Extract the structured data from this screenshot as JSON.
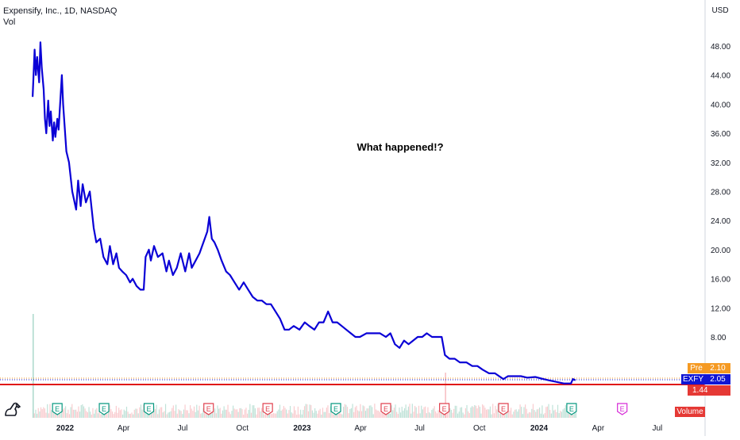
{
  "header": {
    "title": "Expensify, Inc., 1D, NASDAQ",
    "volume_label": "Vol",
    "currency": "USD"
  },
  "annotation": {
    "text": "What happened!?"
  },
  "price_tags": {
    "pre_label": "Pre",
    "pre_value": "2.10",
    "symbol_label": "EXFY",
    "symbol_value": "2.05",
    "support_value": "1.44",
    "volume_label": "Volume"
  },
  "colors": {
    "price_line": "#0a00d6",
    "support_line": "#e01818",
    "pre_tag": "#f59a23",
    "symbol_tag": "#1015d4",
    "support_tag": "#e53935",
    "earnings_green": "#089981",
    "earnings_red": "#e0424f",
    "earnings_purple": "#d62bd6"
  },
  "chart_data": {
    "type": "line",
    "title": "Expensify, Inc., 1D, NASDAQ",
    "ylim": [
      0,
      52
    ],
    "y_ticks": [
      "48.00",
      "44.00",
      "40.00",
      "36.00",
      "32.00",
      "28.00",
      "24.00",
      "20.00",
      "16.00",
      "12.00",
      "8.00"
    ],
    "x_ticks": [
      "2022",
      "Apr",
      "Jul",
      "Oct",
      "2023",
      "Apr",
      "Jul",
      "Oct",
      "2024",
      "Apr",
      "Jul"
    ],
    "x_tick_dates": [
      "2022-01-01",
      "2022-04-01",
      "2022-07-01",
      "2022-10-01",
      "2023-01-01",
      "2023-04-01",
      "2023-07-01",
      "2023-10-01",
      "2024-01-01",
      "2024-04-01",
      "2024-07-01"
    ],
    "x_range": [
      "2021-11-15",
      "2024-08-20"
    ],
    "support_level": 1.44,
    "series": [
      {
        "name": "EXFY",
        "points": [
          [
            "2021-11-12",
            41.0
          ],
          [
            "2021-11-15",
            47.5
          ],
          [
            "2021-11-17",
            44.0
          ],
          [
            "2021-11-19",
            46.5
          ],
          [
            "2021-11-22",
            43.0
          ],
          [
            "2021-11-24",
            48.5
          ],
          [
            "2021-11-26",
            45.0
          ],
          [
            "2021-11-29",
            42.0
          ],
          [
            "2021-12-01",
            38.0
          ],
          [
            "2021-12-03",
            36.0
          ],
          [
            "2021-12-06",
            40.5
          ],
          [
            "2021-12-08",
            37.0
          ],
          [
            "2021-12-10",
            39.0
          ],
          [
            "2021-12-13",
            35.0
          ],
          [
            "2021-12-15",
            37.5
          ],
          [
            "2021-12-17",
            35.5
          ],
          [
            "2021-12-20",
            38.0
          ],
          [
            "2021-12-22",
            36.5
          ],
          [
            "2021-12-27",
            44.0
          ],
          [
            "2021-12-29",
            40.0
          ],
          [
            "2022-01-03",
            33.5
          ],
          [
            "2022-01-07",
            32.0
          ],
          [
            "2022-01-12",
            28.0
          ],
          [
            "2022-01-18",
            25.5
          ],
          [
            "2022-01-21",
            29.5
          ],
          [
            "2022-01-25",
            26.0
          ],
          [
            "2022-01-28",
            29.0
          ],
          [
            "2022-02-02",
            26.5
          ],
          [
            "2022-02-08",
            28.0
          ],
          [
            "2022-02-14",
            23.0
          ],
          [
            "2022-02-18",
            21.0
          ],
          [
            "2022-02-24",
            21.5
          ],
          [
            "2022-03-01",
            19.0
          ],
          [
            "2022-03-07",
            18.0
          ],
          [
            "2022-03-11",
            20.5
          ],
          [
            "2022-03-16",
            18.0
          ],
          [
            "2022-03-21",
            19.5
          ],
          [
            "2022-03-25",
            17.5
          ],
          [
            "2022-03-30",
            17.0
          ],
          [
            "2022-04-05",
            16.5
          ],
          [
            "2022-04-11",
            15.5
          ],
          [
            "2022-04-15",
            16.0
          ],
          [
            "2022-04-21",
            15.0
          ],
          [
            "2022-04-27",
            14.5
          ],
          [
            "2022-05-02",
            14.5
          ],
          [
            "2022-05-05",
            19.0
          ],
          [
            "2022-05-10",
            20.0
          ],
          [
            "2022-05-13",
            18.5
          ],
          [
            "2022-05-18",
            20.5
          ],
          [
            "2022-05-24",
            19.0
          ],
          [
            "2022-05-31",
            19.5
          ],
          [
            "2022-06-06",
            17.0
          ],
          [
            "2022-06-10",
            18.5
          ],
          [
            "2022-06-16",
            16.5
          ],
          [
            "2022-06-22",
            17.5
          ],
          [
            "2022-06-28",
            19.5
          ],
          [
            "2022-07-05",
            17.0
          ],
          [
            "2022-07-11",
            19.5
          ],
          [
            "2022-07-15",
            17.5
          ],
          [
            "2022-07-21",
            18.5
          ],
          [
            "2022-07-27",
            19.5
          ],
          [
            "2022-08-02",
            21.0
          ],
          [
            "2022-08-08",
            22.5
          ],
          [
            "2022-08-11",
            24.5
          ],
          [
            "2022-08-15",
            21.5
          ],
          [
            "2022-08-19",
            21.0
          ],
          [
            "2022-08-24",
            20.0
          ],
          [
            "2022-08-30",
            18.5
          ],
          [
            "2022-09-06",
            17.0
          ],
          [
            "2022-09-12",
            16.5
          ],
          [
            "2022-09-19",
            15.5
          ],
          [
            "2022-09-26",
            14.5
          ],
          [
            "2022-10-03",
            15.5
          ],
          [
            "2022-10-10",
            14.5
          ],
          [
            "2022-10-17",
            13.5
          ],
          [
            "2022-10-24",
            13.0
          ],
          [
            "2022-10-31",
            13.0
          ],
          [
            "2022-11-07",
            12.5
          ],
          [
            "2022-11-14",
            12.5
          ],
          [
            "2022-11-21",
            11.5
          ],
          [
            "2022-11-28",
            10.5
          ],
          [
            "2022-12-05",
            9.0
          ],
          [
            "2022-12-12",
            9.0
          ],
          [
            "2022-12-19",
            9.5
          ],
          [
            "2022-12-28",
            9.0
          ],
          [
            "2023-01-05",
            10.0
          ],
          [
            "2023-01-12",
            9.5
          ],
          [
            "2023-01-20",
            9.0
          ],
          [
            "2023-01-27",
            10.0
          ],
          [
            "2023-02-03",
            10.0
          ],
          [
            "2023-02-10",
            11.5
          ],
          [
            "2023-02-17",
            10.0
          ],
          [
            "2023-02-24",
            10.0
          ],
          [
            "2023-03-03",
            9.5
          ],
          [
            "2023-03-10",
            9.0
          ],
          [
            "2023-03-17",
            8.5
          ],
          [
            "2023-03-24",
            8.0
          ],
          [
            "2023-03-31",
            8.0
          ],
          [
            "2023-04-10",
            8.5
          ],
          [
            "2023-04-20",
            8.5
          ],
          [
            "2023-05-01",
            8.5
          ],
          [
            "2023-05-10",
            8.0
          ],
          [
            "2023-05-17",
            8.5
          ],
          [
            "2023-05-24",
            7.0
          ],
          [
            "2023-05-31",
            6.5
          ],
          [
            "2023-06-07",
            7.5
          ],
          [
            "2023-06-14",
            7.0
          ],
          [
            "2023-06-21",
            7.5
          ],
          [
            "2023-06-28",
            8.0
          ],
          [
            "2023-07-05",
            8.0
          ],
          [
            "2023-07-12",
            8.5
          ],
          [
            "2023-07-20",
            8.0
          ],
          [
            "2023-07-28",
            8.0
          ],
          [
            "2023-08-04",
            8.0
          ],
          [
            "2023-08-09",
            5.5
          ],
          [
            "2023-08-16",
            5.0
          ],
          [
            "2023-08-24",
            5.0
          ],
          [
            "2023-09-01",
            4.5
          ],
          [
            "2023-09-11",
            4.5
          ],
          [
            "2023-09-20",
            4.0
          ],
          [
            "2023-09-28",
            4.0
          ],
          [
            "2023-10-06",
            3.5
          ],
          [
            "2023-10-16",
            3.0
          ],
          [
            "2023-10-25",
            3.0
          ],
          [
            "2023-11-07",
            2.2
          ],
          [
            "2023-11-14",
            2.6
          ],
          [
            "2023-11-24",
            2.6
          ],
          [
            "2023-12-04",
            2.6
          ],
          [
            "2023-12-14",
            2.4
          ],
          [
            "2023-12-26",
            2.5
          ],
          [
            "2024-01-08",
            2.2
          ],
          [
            "2024-01-18",
            2.0
          ],
          [
            "2024-01-29",
            1.8
          ],
          [
            "2024-02-08",
            1.6
          ],
          [
            "2024-02-19",
            1.6
          ],
          [
            "2024-02-22",
            2.2
          ],
          [
            "2024-02-26",
            2.05
          ]
        ]
      }
    ],
    "earnings_events": [
      {
        "date": "2021-12-20",
        "label": "E",
        "color": "green"
      },
      {
        "date": "2022-03-02",
        "label": "E",
        "color": "green"
      },
      {
        "date": "2022-05-10",
        "label": "E",
        "color": "green"
      },
      {
        "date": "2022-08-10",
        "label": "E",
        "color": "red"
      },
      {
        "date": "2022-11-09",
        "label": "E",
        "color": "red"
      },
      {
        "date": "2023-02-22",
        "label": "E",
        "color": "green"
      },
      {
        "date": "2023-05-10",
        "label": "E",
        "color": "red"
      },
      {
        "date": "2023-08-08",
        "label": "E",
        "color": "red"
      },
      {
        "date": "2023-11-07",
        "label": "E",
        "color": "red"
      },
      {
        "date": "2024-02-20",
        "label": "E",
        "color": "green"
      },
      {
        "date": "2024-05-08",
        "label": "E",
        "color": "purple"
      }
    ]
  }
}
